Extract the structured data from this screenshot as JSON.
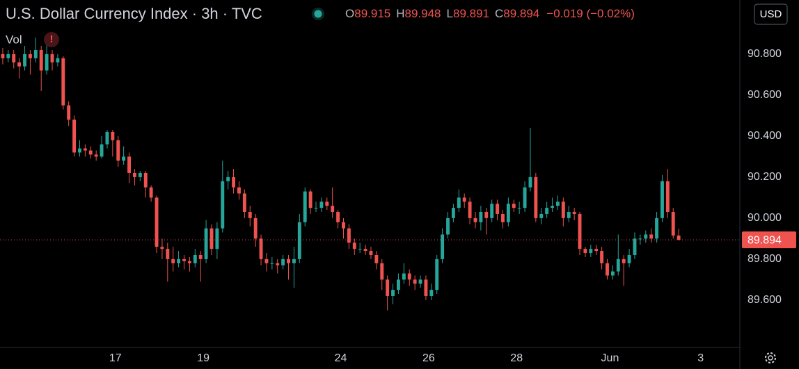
{
  "chart_data": {
    "type": "candlestick",
    "title": "U.S. Dollar Currency Index · 3h · TVC",
    "ohlc_legend": [
      {
        "key": "O",
        "value": "89.915"
      },
      {
        "key": "H",
        "value": "89.948"
      },
      {
        "key": "L",
        "value": "89.891"
      },
      {
        "key": "C",
        "value": "89.894"
      }
    ],
    "change": "−0.019 (−0.02%)",
    "volume_label": "Vol",
    "warning": "!",
    "currency": "USD",
    "up_color": "#26a69a",
    "down_color": "#ef5350",
    "grid": false,
    "x": [
      0,
      1,
      2,
      3,
      4,
      5,
      6,
      7,
      8,
      9,
      10,
      11,
      12,
      13,
      14,
      15,
      16,
      17,
      18,
      19,
      20,
      21,
      22,
      23,
      24,
      25,
      26,
      27,
      28,
      29,
      30,
      31,
      32,
      33,
      34,
      35,
      36,
      37,
      38,
      39,
      40,
      41,
      42,
      43,
      44,
      45,
      46,
      47,
      48,
      49,
      50,
      51,
      52,
      53,
      54,
      55,
      56,
      57,
      58,
      59,
      60,
      61,
      62,
      63,
      64,
      65,
      66,
      67,
      68,
      69,
      70,
      71,
      72,
      73,
      74,
      75,
      76,
      77,
      78,
      79,
      80,
      81,
      82,
      83,
      84,
      85,
      86,
      87,
      88,
      89,
      90,
      91,
      92,
      93,
      94,
      95,
      96,
      97,
      98,
      99,
      100,
      101,
      102,
      103,
      104,
      105,
      106,
      107,
      108,
      109,
      110,
      111,
      112,
      113,
      114,
      115,
      116,
      117,
      118,
      119,
      120,
      121,
      122,
      123
    ],
    "open": [
      90.8,
      90.78,
      90.8,
      90.76,
      90.74,
      90.8,
      90.78,
      90.82,
      90.72,
      90.8,
      90.76,
      90.78,
      90.55,
      90.48,
      90.32,
      90.34,
      90.33,
      90.31,
      90.3,
      90.36,
      90.42,
      90.38,
      90.28,
      90.3,
      90.22,
      90.2,
      90.22,
      90.15,
      90.1,
      89.86,
      89.85,
      89.8,
      89.78,
      89.8,
      89.79,
      89.78,
      89.82,
      89.8,
      89.95,
      89.85,
      89.95,
      90.18,
      90.2,
      90.15,
      90.12,
      90.03,
      90.0,
      89.9,
      89.8,
      89.78,
      89.78,
      89.77,
      89.8,
      89.78,
      89.8,
      89.98,
      90.13,
      90.05,
      90.05,
      90.08,
      90.06,
      90.03,
      89.98,
      89.95,
      89.88,
      89.85,
      89.85,
      89.84,
      89.82,
      89.78,
      89.7,
      89.62,
      89.65,
      89.7,
      89.73,
      89.7,
      89.68,
      89.7,
      89.62,
      89.65,
      89.8,
      89.92,
      90.0,
      90.05,
      90.1,
      90.08,
      90.0,
      89.98,
      90.03,
      90.0,
      90.07,
      90.02,
      89.98,
      90.07,
      90.05,
      90.05,
      90.15,
      90.2,
      90.0,
      90.02,
      90.05,
      90.06,
      90.08,
      90.0,
      90.03,
      90.02,
      89.85,
      89.83,
      89.85,
      89.84,
      89.78,
      89.72,
      89.74,
      89.8,
      89.78,
      89.82,
      89.9,
      89.9,
      89.92,
      89.9,
      90.0,
      90.18,
      90.03,
      89.915
    ],
    "high": [
      90.83,
      90.82,
      90.82,
      90.78,
      90.84,
      90.82,
      90.88,
      90.84,
      90.88,
      90.82,
      90.8,
      90.79,
      90.57,
      90.5,
      90.38,
      90.36,
      90.35,
      90.33,
      90.4,
      90.43,
      90.43,
      90.4,
      90.35,
      90.32,
      90.24,
      90.23,
      90.23,
      90.16,
      90.11,
      89.9,
      89.88,
      89.86,
      89.84,
      89.82,
      89.81,
      89.85,
      89.84,
      89.99,
      89.97,
      89.98,
      90.28,
      90.23,
      90.24,
      90.18,
      90.14,
      90.06,
      90.02,
      89.92,
      89.83,
      89.81,
      89.8,
      89.82,
      89.82,
      89.86,
      90.02,
      90.15,
      90.14,
      90.08,
      90.1,
      90.1,
      90.15,
      90.04,
      90.0,
      89.97,
      89.9,
      89.88,
      89.87,
      89.86,
      89.84,
      89.8,
      89.72,
      89.68,
      89.73,
      89.78,
      89.75,
      89.72,
      89.72,
      89.72,
      89.68,
      89.82,
      89.95,
      90.03,
      90.07,
      90.14,
      90.12,
      90.1,
      90.03,
      90.06,
      90.05,
      90.09,
      90.09,
      90.04,
      90.1,
      90.09,
      90.08,
      90.18,
      90.44,
      90.22,
      90.05,
      90.08,
      90.1,
      90.11,
      90.1,
      90.06,
      90.05,
      90.03,
      89.86,
      89.87,
      89.87,
      89.86,
      89.8,
      89.77,
      89.92,
      89.82,
      89.85,
      89.93,
      89.92,
      89.94,
      89.95,
      90.03,
      90.21,
      90.24,
      90.05,
      89.948
    ],
    "low": [
      90.75,
      90.76,
      90.73,
      90.68,
      90.72,
      90.7,
      90.76,
      90.62,
      90.7,
      90.72,
      90.74,
      90.53,
      90.45,
      90.3,
      90.3,
      90.3,
      90.29,
      90.28,
      90.29,
      90.34,
      90.3,
      90.25,
      90.26,
      90.17,
      90.16,
      90.18,
      90.1,
      90.08,
      89.83,
      89.8,
      89.69,
      89.74,
      89.76,
      89.75,
      89.74,
      89.76,
      89.69,
      89.78,
      89.82,
      89.8,
      89.93,
      90.14,
      90.12,
      90.09,
      90.0,
      89.96,
      89.86,
      89.77,
      89.74,
      89.75,
      89.73,
      89.75,
      89.7,
      89.66,
      89.78,
      89.96,
      90.02,
      90.03,
      90.03,
      90.04,
      90.0,
      89.95,
      89.9,
      89.85,
      89.82,
      89.83,
      89.82,
      89.8,
      89.75,
      89.65,
      89.55,
      89.58,
      89.63,
      89.68,
      89.67,
      89.65,
      89.66,
      89.6,
      89.6,
      89.63,
      89.78,
      89.9,
      89.98,
      90.03,
      90.05,
      89.97,
      89.95,
      89.94,
      89.92,
      89.98,
      89.99,
      89.95,
      89.96,
      90.03,
      90.02,
      90.03,
      90.13,
      89.98,
      89.97,
      90.0,
      90.03,
      90.04,
      89.96,
      89.98,
      89.99,
      89.82,
      89.81,
      89.81,
      89.82,
      89.75,
      89.7,
      89.7,
      89.72,
      89.67,
      89.76,
      89.8,
      89.87,
      89.88,
      89.88,
      89.88,
      89.98,
      90.0,
      89.9,
      89.891
    ],
    "close": [
      90.78,
      90.8,
      90.76,
      90.74,
      90.8,
      90.78,
      90.82,
      90.72,
      90.8,
      90.76,
      90.78,
      90.55,
      90.48,
      90.32,
      90.34,
      90.33,
      90.31,
      90.3,
      90.36,
      90.42,
      90.38,
      90.28,
      90.3,
      90.22,
      90.2,
      90.22,
      90.15,
      90.1,
      89.86,
      89.85,
      89.8,
      89.78,
      89.8,
      89.79,
      89.78,
      89.82,
      89.8,
      89.95,
      89.85,
      89.95,
      90.18,
      90.2,
      90.15,
      90.12,
      90.03,
      90.0,
      89.9,
      89.8,
      89.78,
      89.78,
      89.77,
      89.8,
      89.78,
      89.8,
      89.98,
      90.13,
      90.05,
      90.05,
      90.08,
      90.06,
      90.03,
      89.98,
      89.95,
      89.88,
      89.85,
      89.85,
      89.84,
      89.82,
      89.78,
      89.7,
      89.62,
      89.65,
      89.7,
      89.73,
      89.7,
      89.68,
      89.7,
      89.62,
      89.65,
      89.8,
      89.92,
      90.0,
      90.05,
      90.1,
      90.08,
      90.0,
      89.98,
      90.03,
      90.0,
      90.07,
      90.02,
      89.98,
      90.07,
      90.05,
      90.05,
      90.15,
      90.2,
      90.0,
      90.02,
      90.05,
      90.06,
      90.08,
      90.0,
      90.03,
      90.02,
      89.85,
      89.83,
      89.85,
      89.84,
      89.78,
      89.72,
      89.74,
      89.8,
      89.78,
      89.82,
      89.9,
      89.9,
      89.92,
      89.9,
      90.0,
      90.18,
      90.03,
      89.915,
      89.894
    ],
    "xlim": [
      -0.5,
      134
    ],
    "ylim": [
      89.369,
      91.064
    ],
    "xticks": [
      {
        "value": 20.5,
        "label": "17"
      },
      {
        "value": 36.5,
        "label": "19"
      },
      {
        "value": 61.5,
        "label": "24"
      },
      {
        "value": 77.5,
        "label": "26"
      },
      {
        "value": 93.5,
        "label": "28"
      },
      {
        "value": 110.5,
        "label": "Jun"
      },
      {
        "value": 127,
        "label": "3"
      }
    ],
    "yticks": [
      {
        "value": 89.6,
        "label": "89.600"
      },
      {
        "value": 89.8,
        "label": "89.800"
      },
      {
        "value": 90.0,
        "label": "90.000"
      },
      {
        "value": 90.2,
        "label": "90.200"
      },
      {
        "value": 90.4,
        "label": "90.400"
      },
      {
        "value": 90.6,
        "label": "90.600"
      },
      {
        "value": 90.8,
        "label": "90.800"
      }
    ]
  }
}
